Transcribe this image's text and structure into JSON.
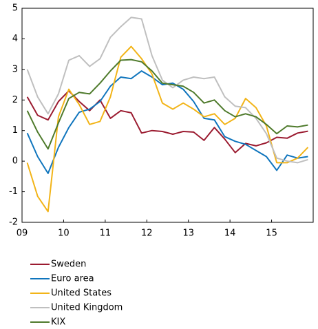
{
  "chart_data": {
    "type": "line",
    "x": [
      2009.125,
      2009.375,
      2009.625,
      2009.875,
      2010.125,
      2010.375,
      2010.625,
      2010.875,
      2011.125,
      2011.375,
      2011.625,
      2011.875,
      2012.125,
      2012.375,
      2012.625,
      2012.875,
      2013.125,
      2013.375,
      2013.625,
      2013.875,
      2014.125,
      2014.375,
      2014.625,
      2014.875,
      2015.125,
      2015.375,
      2015.625,
      2015.875
    ],
    "series": [
      {
        "name": "Sweden",
        "color": "#9b1b30",
        "values": [
          2.1,
          1.5,
          1.35,
          1.95,
          2.3,
          1.95,
          1.65,
          2.0,
          1.4,
          1.65,
          1.58,
          0.92,
          1.0,
          0.97,
          0.88,
          0.97,
          0.95,
          0.68,
          1.1,
          0.72,
          0.28,
          0.58,
          0.5,
          0.6,
          0.78,
          0.75,
          0.92,
          0.98
        ]
      },
      {
        "name": "Euro area",
        "color": "#0f75bd",
        "values": [
          0.92,
          0.15,
          -0.4,
          0.45,
          1.1,
          1.6,
          1.7,
          1.95,
          2.45,
          2.75,
          2.7,
          2.95,
          2.75,
          2.5,
          2.55,
          2.35,
          1.95,
          1.4,
          1.35,
          0.8,
          0.65,
          0.55,
          0.35,
          0.15,
          -0.3,
          0.2,
          0.1,
          0.15
        ]
      },
      {
        "name": "United States",
        "color": "#f2b418",
        "values": [
          -0.05,
          -1.15,
          -1.65,
          1.45,
          2.35,
          1.85,
          1.2,
          1.3,
          2.1,
          3.4,
          3.75,
          3.35,
          2.85,
          1.9,
          1.7,
          1.9,
          1.7,
          1.45,
          1.55,
          1.2,
          1.4,
          2.05,
          1.75,
          1.15,
          -0.05,
          -0.05,
          0.1,
          0.45
        ]
      },
      {
        "name": "United Kingdom",
        "color": "#bfbfbf",
        "values": [
          3.0,
          2.1,
          1.55,
          2.2,
          3.3,
          3.45,
          3.1,
          3.35,
          4.05,
          4.4,
          4.7,
          4.65,
          3.45,
          2.65,
          2.4,
          2.65,
          2.75,
          2.7,
          2.75,
          2.1,
          1.8,
          1.75,
          1.4,
          0.9,
          0.1,
          0.0,
          -0.05,
          0.05
        ]
      },
      {
        "name": "KIX",
        "color": "#4e7a2b",
        "values": [
          1.65,
          0.95,
          0.4,
          1.25,
          2.05,
          2.25,
          2.2,
          2.55,
          2.95,
          3.3,
          3.32,
          3.25,
          2.95,
          2.55,
          2.5,
          2.45,
          2.25,
          1.9,
          2.0,
          1.65,
          1.45,
          1.55,
          1.45,
          1.2,
          0.9,
          1.15,
          1.12,
          1.18
        ]
      }
    ],
    "xlim": [
      2009,
      2016
    ],
    "xticks": [
      {
        "value": 2009,
        "label": "09"
      },
      {
        "value": 2010,
        "label": "10"
      },
      {
        "value": 2011,
        "label": "11"
      },
      {
        "value": 2012,
        "label": "12"
      },
      {
        "value": 2013,
        "label": "13"
      },
      {
        "value": 2014,
        "label": "14"
      },
      {
        "value": 2015,
        "label": "15"
      }
    ],
    "ylim": [
      -2,
      5
    ],
    "yticks": [
      -2,
      -1,
      0,
      1,
      2,
      3,
      4,
      5
    ]
  }
}
